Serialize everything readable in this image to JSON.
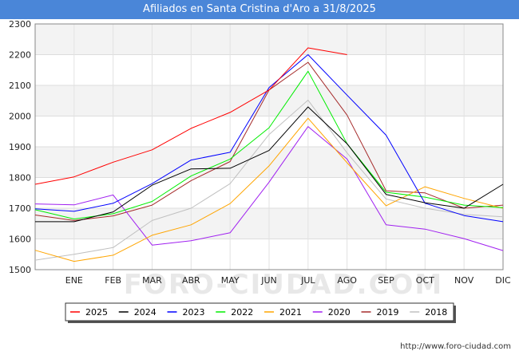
{
  "chart_data": {
    "type": "line",
    "title": "Afiliados en Santa Cristina d'Aro a 31/8/2025",
    "categories": [
      "",
      "ENE",
      "FEB",
      "MAR",
      "ABR",
      "MAY",
      "JUN",
      "JUL",
      "AGO",
      "SEP",
      "OCT",
      "NOV",
      "DIC"
    ],
    "ylim": [
      1500,
      2300
    ],
    "yticks": [
      "1500",
      "1600",
      "1700",
      "1800",
      "1900",
      "2000",
      "2100",
      "2200",
      "2300"
    ],
    "xlabel": "",
    "ylabel": "",
    "grid": true,
    "legend_position": "bottom",
    "series": [
      {
        "name": "2025",
        "color": "#ff0000",
        "values": [
          1778,
          1802,
          1850,
          1890,
          1960,
          2012,
          2085,
          2222,
          2200,
          null,
          null,
          null,
          null
        ]
      },
      {
        "name": "2024",
        "color": "#000000",
        "values": [
          1656,
          1656,
          1688,
          1775,
          1828,
          1830,
          1888,
          2030,
          1910,
          1745,
          1718,
          1700,
          1778
        ]
      },
      {
        "name": "2023",
        "color": "#0000ff",
        "values": [
          1698,
          1690,
          1716,
          1780,
          1857,
          1882,
          2093,
          2200,
          2068,
          1938,
          1716,
          1676,
          1656
        ]
      },
      {
        "name": "2022",
        "color": "#00ee00",
        "values": [
          1695,
          1665,
          1682,
          1722,
          1805,
          1860,
          1962,
          2146,
          1910,
          1752,
          1736,
          1710,
          1702
        ]
      },
      {
        "name": "2021",
        "color": "#ffa500",
        "values": [
          1563,
          1527,
          1547,
          1612,
          1646,
          1715,
          1838,
          1993,
          1848,
          1708,
          1770,
          1732,
          1700
        ]
      },
      {
        "name": "2020",
        "color": "#a020f0",
        "values": [
          1714,
          1711,
          1743,
          1580,
          1594,
          1620,
          1785,
          1966,
          1860,
          1646,
          1632,
          1601,
          1562
        ]
      },
      {
        "name": "2019",
        "color": "#a52a2a",
        "values": [
          1678,
          1660,
          1675,
          1710,
          1790,
          1852,
          2085,
          2175,
          2003,
          1757,
          1750,
          1700,
          1710
        ]
      },
      {
        "name": "2018",
        "color": "#c0c0c0",
        "values": [
          1531,
          1550,
          1572,
          1660,
          1700,
          1780,
          1940,
          2052,
          1880,
          1730,
          1700,
          1680,
          1672
        ]
      }
    ]
  },
  "watermark": "FORO-CIUDAD.COM",
  "source": "http://www.foro-ciudad.com"
}
